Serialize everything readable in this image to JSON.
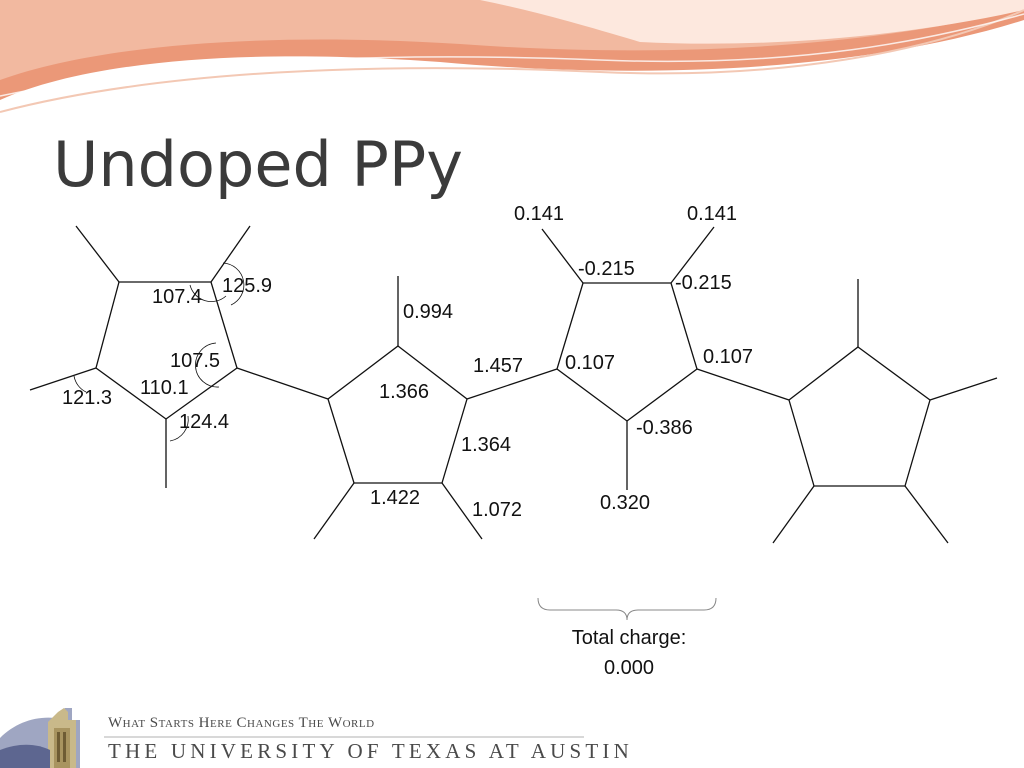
{
  "title": "Undoped PPy",
  "ring1": {
    "angles": [
      "125.9",
      "107.4",
      "107.5",
      "110.1",
      "121.3",
      "124.4"
    ]
  },
  "ring2": {
    "bond_lengths": [
      "0.994",
      "1.366",
      "1.457",
      "1.364",
      "1.422",
      "1.072"
    ]
  },
  "ring3": {
    "charges": [
      "0.141",
      "0.141",
      "-0.215",
      "-0.215",
      "0.107",
      "0.107",
      "-0.386",
      "0.320"
    ]
  },
  "total_charge": {
    "label": "Total charge:",
    "value": "0.000"
  },
  "footer": {
    "tagline": "What Starts Here Changes The World",
    "university": "THE UNIVERSITY OF TEXAS AT AUSTIN"
  },
  "colors": {
    "accent": "#ea8f6f",
    "title": "#3b3b3b",
    "footer": "#4a4a4a"
  }
}
